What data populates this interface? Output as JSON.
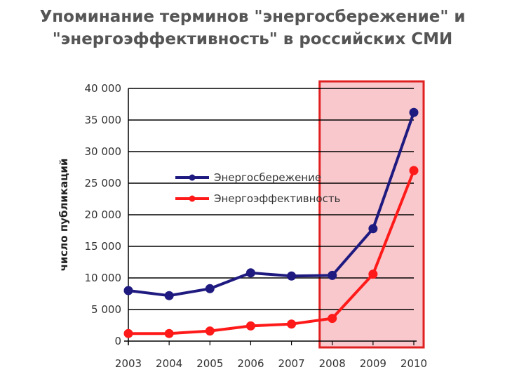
{
  "chart_data": {
    "type": "line",
    "title_line1": "Упоминание терминов \"энергосбережение\" и",
    "title_line2": "\"энергоэффективность\" в российских СМИ",
    "xlabel": "",
    "ylabel": "число публикаций",
    "ylim": [
      0,
      40000
    ],
    "ytick_labels": [
      "0",
      "5 000",
      "10 000",
      "15 000",
      "20 000",
      "25 000",
      "30 000",
      "35 000",
      "40 000"
    ],
    "ytick_values": [
      0,
      5000,
      10000,
      15000,
      20000,
      25000,
      30000,
      35000,
      40000
    ],
    "categories": [
      "2003",
      "2004",
      "2005",
      "2006",
      "2007",
      "2008",
      "2009",
      "2010"
    ],
    "grid": "horizontal",
    "legend_position": "inside-upper-left",
    "highlight": {
      "from": "2008",
      "to": "2010",
      "fill": "#f9c8cc",
      "stroke": "#e02020"
    },
    "series": [
      {
        "name": "Энергосбережение",
        "color": "#1f1a80",
        "values": [
          8000,
          7200,
          8300,
          10800,
          10300,
          10400,
          17800,
          36200
        ]
      },
      {
        "name": "Энергоэффективность",
        "color": "#ff1a1a",
        "values": [
          1200,
          1200,
          1600,
          2400,
          2700,
          3600,
          10600,
          27000
        ]
      }
    ]
  }
}
